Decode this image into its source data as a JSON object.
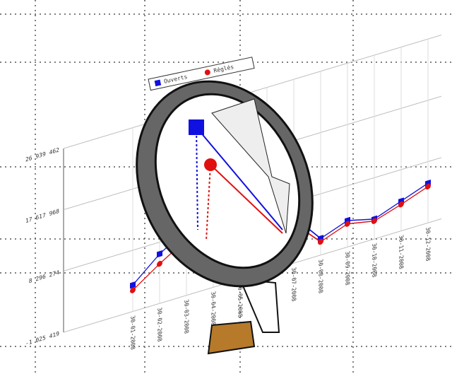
{
  "chart_data": {
    "type": "line",
    "categories": [
      "30-01-2008",
      "30-02-2008",
      "30-03-2008",
      "30-04-2008",
      "30-05-2008",
      "30-06-2008",
      "30-07-2008",
      "30-08-2008",
      "30-09-2008",
      "30-10-2008",
      "30-11-2008",
      "30-12-2008"
    ],
    "series": [
      {
        "name": "Ouverts",
        "color": "#1010e0",
        "values": [
          3000000,
          6500000,
          9000000,
          10000000,
          9000000,
          8000000,
          6000000,
          1500000,
          3000000,
          2000000,
          3500000,
          5000000
        ]
      },
      {
        "name": "Réglés",
        "color": "#e01010",
        "values": [
          2200000,
          5000000,
          7500000,
          8500000,
          8000000,
          7000000,
          5000000,
          1000000,
          2500000,
          1700000,
          3000000,
          4500000
        ]
      }
    ],
    "ylim": [
      -1025419,
      26939462
    ],
    "yticks": [
      {
        "value": -1025419,
        "label": "-1 025 419"
      },
      {
        "value": 8296274,
        "label": "8 296 274"
      },
      {
        "value": 17617968,
        "label": "17 617 968"
      },
      {
        "value": 26939462,
        "label": "26 939 462"
      }
    ],
    "grid": true
  }
}
